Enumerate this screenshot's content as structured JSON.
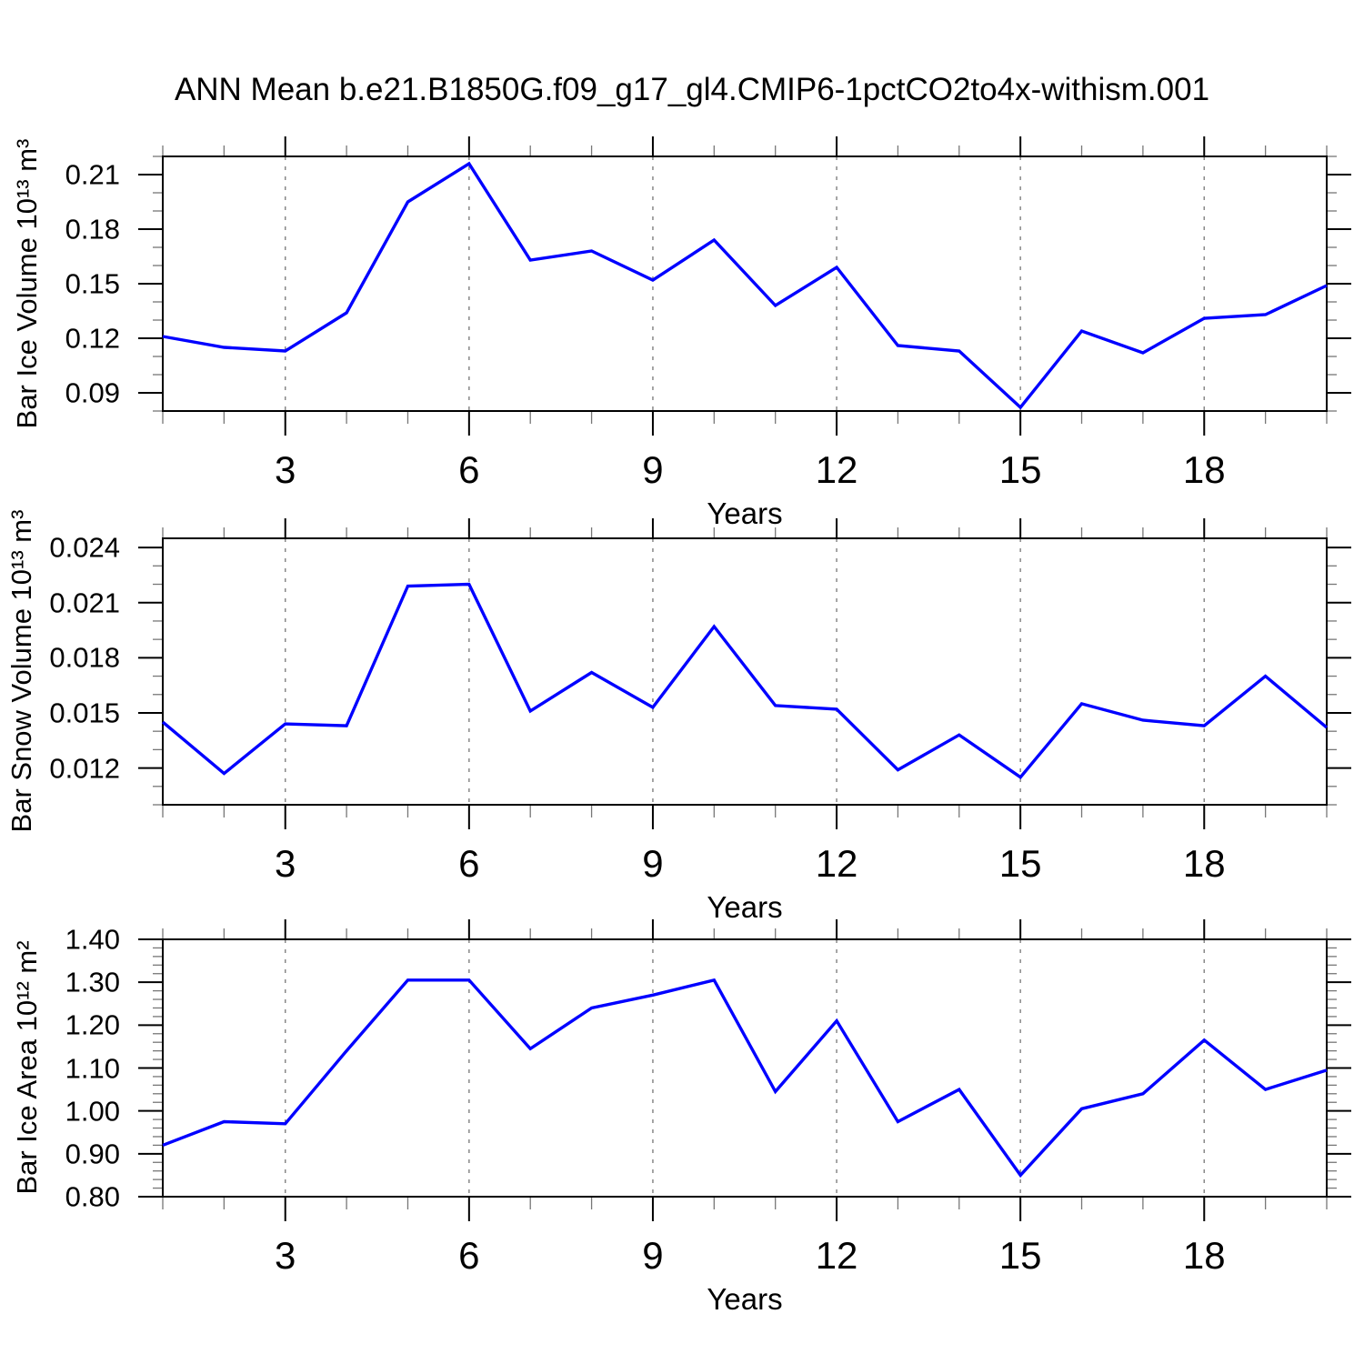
{
  "page_title": "ANN Mean b.e21.B1850G.f09_g17_gl4.CMIP6-1pctCO2to4x-withism.001",
  "line_color": "#0000ff",
  "chart_data": [
    {
      "type": "line",
      "name": "ice-volume",
      "ylabel": "Bar Ice Volume 10¹³ m³",
      "xlabel": "Years",
      "ylim": [
        0.08,
        0.22
      ],
      "yticks": [
        0.09,
        0.12,
        0.15,
        0.18,
        0.21
      ],
      "ytick_labels": [
        "0.09",
        "0.12",
        "0.15",
        "0.18",
        "0.21"
      ],
      "y_minor_step": 0.01,
      "xlim": [
        1,
        20
      ],
      "xticks": [
        3,
        6,
        9,
        12,
        15,
        18
      ],
      "xtick_labels": [
        "3",
        "6",
        "9",
        "12",
        "15",
        "18"
      ],
      "x_minor_step": 1,
      "grid_x_dashed": true,
      "x": [
        1,
        2,
        3,
        4,
        5,
        6,
        7,
        8,
        9,
        10,
        11,
        12,
        13,
        14,
        15,
        16,
        17,
        18,
        19,
        20
      ],
      "y": [
        0.121,
        0.115,
        0.113,
        0.134,
        0.195,
        0.216,
        0.163,
        0.168,
        0.152,
        0.174,
        0.138,
        0.159,
        0.116,
        0.113,
        0.082,
        0.124,
        0.112,
        0.131,
        0.133,
        0.149
      ]
    },
    {
      "type": "line",
      "name": "snow-volume",
      "ylabel": "Bar Snow Volume 10¹³ m³",
      "xlabel": "Years",
      "ylim": [
        0.01,
        0.0245
      ],
      "yticks": [
        0.012,
        0.015,
        0.018,
        0.021,
        0.024
      ],
      "ytick_labels": [
        "0.012",
        "0.015",
        "0.018",
        "0.021",
        "0.024"
      ],
      "y_minor_step": 0.001,
      "xlim": [
        1,
        20
      ],
      "xticks": [
        3,
        6,
        9,
        12,
        15,
        18
      ],
      "xtick_labels": [
        "3",
        "6",
        "9",
        "12",
        "15",
        "18"
      ],
      "x_minor_step": 1,
      "grid_x_dashed": true,
      "x": [
        1,
        2,
        3,
        4,
        5,
        6,
        7,
        8,
        9,
        10,
        11,
        12,
        13,
        14,
        15,
        16,
        17,
        18,
        19,
        20
      ],
      "y": [
        0.0145,
        0.0117,
        0.0144,
        0.0143,
        0.0219,
        0.022,
        0.0151,
        0.0172,
        0.0153,
        0.0197,
        0.0154,
        0.0152,
        0.0119,
        0.0138,
        0.0115,
        0.0155,
        0.0146,
        0.0143,
        0.017,
        0.0142
      ]
    },
    {
      "type": "line",
      "name": "ice-area",
      "ylabel": "Bar Ice Area 10¹² m²",
      "xlabel": "Years",
      "ylim": [
        0.8,
        1.4
      ],
      "yticks": [
        0.8,
        0.9,
        1.0,
        1.1,
        1.2,
        1.3,
        1.4
      ],
      "ytick_labels": [
        "0.80",
        "0.90",
        "1.00",
        "1.10",
        "1.20",
        "1.30",
        "1.40"
      ],
      "y_minor_step": 0.02,
      "xlim": [
        1,
        20
      ],
      "xticks": [
        3,
        6,
        9,
        12,
        15,
        18
      ],
      "xtick_labels": [
        "3",
        "6",
        "9",
        "12",
        "15",
        "18"
      ],
      "x_minor_step": 1,
      "grid_x_dashed": true,
      "x": [
        1,
        2,
        3,
        4,
        5,
        6,
        7,
        8,
        9,
        10,
        11,
        12,
        13,
        14,
        15,
        16,
        17,
        18,
        19,
        20
      ],
      "y": [
        0.92,
        0.975,
        0.97,
        1.14,
        1.305,
        1.305,
        1.145,
        1.24,
        1.27,
        1.305,
        1.045,
        1.21,
        0.975,
        1.05,
        0.85,
        1.005,
        1.04,
        1.165,
        1.05,
        1.095
      ]
    }
  ]
}
